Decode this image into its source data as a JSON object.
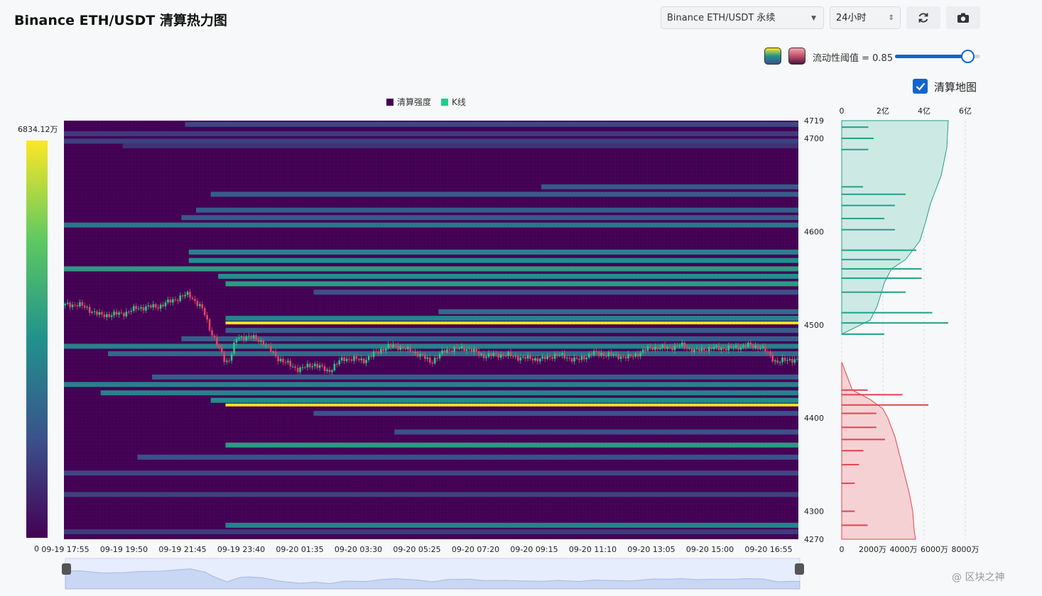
{
  "header": {
    "title": "Binance ETH/USDT 清算热力图",
    "market_select": "Binance ETH/USDT 永续",
    "period_select": "24小时",
    "refresh_icon": "refresh-icon",
    "camera_icon": "camera-icon"
  },
  "controls": {
    "threshold_label": "流动性阈值 = 0.85",
    "threshold_value": 0.85,
    "liquidation_map_label": "清算地图",
    "liquidation_map_checked": true,
    "swatch_colors": [
      "#21918c",
      "#c0506a"
    ]
  },
  "legend": {
    "intensity": "清算强度",
    "kline": "K线",
    "intensity_color": "#440154",
    "kline_color": "#22cc88"
  },
  "colorbar": {
    "max_label": "6834.12万",
    "min_label": "0"
  },
  "watermark": "@ 区块之神",
  "chart_data": [
    {
      "type": "heatmap",
      "title": "",
      "x_ticks": [
        "09-19 17:55",
        "09-19 19:50",
        "09-19 21:45",
        "09-19 23:40",
        "09-20 01:35",
        "09-20 03:30",
        "09-20 05:25",
        "09-20 07:20",
        "09-20 09:15",
        "09-20 11:10",
        "09-20 13:05",
        "09-20 15:00",
        "09-20 16:55"
      ],
      "y_ticks": [
        4719,
        4700,
        4600,
        4500,
        4400,
        4300,
        4270
      ],
      "ylim": [
        4270,
        4719
      ],
      "bands": [
        {
          "price": 4715,
          "start": 0.165,
          "value": 0.22
        },
        {
          "price": 4705,
          "start": 0.0,
          "value": 0.18
        },
        {
          "price": 4697,
          "start": 0.0,
          "value": 0.2
        },
        {
          "price": 4692,
          "start": 0.08,
          "value": 0.15
        },
        {
          "price": 4648,
          "start": 0.65,
          "value": 0.28
        },
        {
          "price": 4640,
          "start": 0.2,
          "value": 0.3
        },
        {
          "price": 4623,
          "start": 0.18,
          "value": 0.3
        },
        {
          "price": 4615,
          "start": 0.16,
          "value": 0.28
        },
        {
          "price": 4607,
          "start": 0.0,
          "value": 0.4
        },
        {
          "price": 4578,
          "start": 0.17,
          "value": 0.45
        },
        {
          "price": 4569,
          "start": 0.17,
          "value": 0.5
        },
        {
          "price": 4560,
          "start": 0.0,
          "value": 0.55
        },
        {
          "price": 4552,
          "start": 0.21,
          "value": 0.5
        },
        {
          "price": 4544,
          "start": 0.22,
          "value": 0.55
        },
        {
          "price": 4535,
          "start": 0.34,
          "value": 0.25
        },
        {
          "price": 4514,
          "start": 0.51,
          "value": 0.35
        },
        {
          "price": 4507,
          "start": 0.22,
          "value": 0.45
        },
        {
          "price": 4502,
          "start": 0.22,
          "value": 1.0
        },
        {
          "price": 4494,
          "start": 0.22,
          "value": 0.3
        },
        {
          "price": 4485,
          "start": 0.16,
          "value": 0.3
        },
        {
          "price": 4477,
          "start": 0.0,
          "value": 0.45
        },
        {
          "price": 4469,
          "start": 0.06,
          "value": 0.35
        },
        {
          "price": 4444,
          "start": 0.12,
          "value": 0.3
        },
        {
          "price": 4436,
          "start": 0.0,
          "value": 0.45
        },
        {
          "price": 4427,
          "start": 0.05,
          "value": 0.45
        },
        {
          "price": 4419,
          "start": 0.2,
          "value": 0.5
        },
        {
          "price": 4414,
          "start": 0.22,
          "value": 1.0
        },
        {
          "price": 4405,
          "start": 0.34,
          "value": 0.25
        },
        {
          "price": 4385,
          "start": 0.45,
          "value": 0.25
        },
        {
          "price": 4371,
          "start": 0.22,
          "value": 0.55
        },
        {
          "price": 4358,
          "start": 0.1,
          "value": 0.25
        },
        {
          "price": 4341,
          "start": 0.0,
          "value": 0.22
        },
        {
          "price": 4318,
          "start": 0.0,
          "value": 0.2
        },
        {
          "price": 4285,
          "start": 0.22,
          "value": 0.45
        },
        {
          "price": 4278,
          "start": 0.0,
          "value": 0.18
        }
      ]
    },
    {
      "type": "line",
      "name": "K线",
      "x": [
        0,
        0.02,
        0.05,
        0.08,
        0.1,
        0.13,
        0.15,
        0.17,
        0.19,
        0.2,
        0.22,
        0.225,
        0.235,
        0.25,
        0.27,
        0.29,
        0.3,
        0.32,
        0.34,
        0.36,
        0.38,
        0.41,
        0.43,
        0.45,
        0.48,
        0.5,
        0.52,
        0.55,
        0.57,
        0.6,
        0.62,
        0.65,
        0.67,
        0.7,
        0.72,
        0.74,
        0.77,
        0.8,
        0.82,
        0.84,
        0.86,
        0.88,
        0.91,
        0.93,
        0.95,
        0.97,
        0.99,
        1.0
      ],
      "y": [
        4521,
        4522,
        4510,
        4512,
        4518,
        4520,
        4527,
        4533,
        4515,
        4493,
        4460,
        4463,
        4485,
        4488,
        4482,
        4465,
        4460,
        4452,
        4458,
        4450,
        4464,
        4462,
        4473,
        4478,
        4470,
        4460,
        4473,
        4475,
        4467,
        4468,
        4465,
        4463,
        4468,
        4462,
        4470,
        4468,
        4465,
        4476,
        4475,
        4478,
        4472,
        4475,
        4475,
        4478,
        4476,
        4460,
        4463,
        4462
      ]
    },
    {
      "type": "bar",
      "name": "cumulative",
      "x_ticks_top": [
        "0",
        "2亿",
        "4亿",
        "6亿"
      ],
      "x_ticks_bottom": [
        "0",
        "2000万",
        "4000万",
        "6000万",
        "8000万"
      ],
      "short_bars": [
        {
          "price": 4712,
          "value": 0.25
        },
        {
          "price": 4700,
          "value": 0.3
        },
        {
          "price": 4688,
          "value": 0.25
        },
        {
          "price": 4648,
          "value": 0.2
        },
        {
          "price": 4640,
          "value": 0.6
        },
        {
          "price": 4628,
          "value": 0.5
        },
        {
          "price": 4614,
          "value": 0.4
        },
        {
          "price": 4602,
          "value": 0.5
        },
        {
          "price": 4580,
          "value": 0.7
        },
        {
          "price": 4570,
          "value": 0.55
        },
        {
          "price": 4560,
          "value": 0.75
        },
        {
          "price": 4550,
          "value": 0.75
        },
        {
          "price": 4535,
          "value": 0.6
        },
        {
          "price": 4513,
          "value": 0.85
        },
        {
          "price": 4502,
          "value": 1.0
        },
        {
          "price": 4490,
          "value": 0.4
        }
      ],
      "long_bars": [
        {
          "price": 4430,
          "value": 0.3
        },
        {
          "price": 4425,
          "value": 0.7
        },
        {
          "price": 4414,
          "value": 1.0
        },
        {
          "price": 4405,
          "value": 0.4
        },
        {
          "price": 4390,
          "value": 0.4
        },
        {
          "price": 4377,
          "value": 0.5
        },
        {
          "price": 4365,
          "value": 0.25
        },
        {
          "price": 4350,
          "value": 0.2
        },
        {
          "price": 4330,
          "value": 0.15
        },
        {
          "price": 4300,
          "value": 0.15
        },
        {
          "price": 4285,
          "value": 0.3
        }
      ]
    }
  ]
}
